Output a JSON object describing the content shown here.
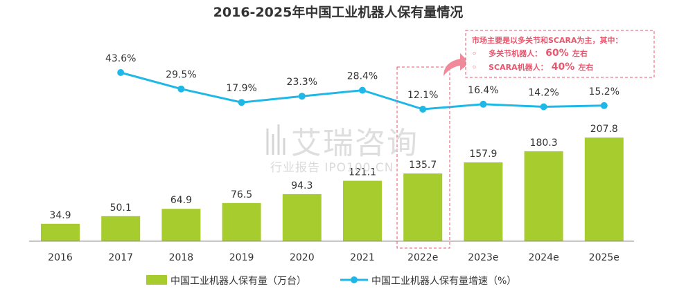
{
  "chart_data": {
    "type": "bar+line",
    "title": "2016-2025年中国工业机器人保有量情况",
    "categories": [
      "2016",
      "2017",
      "2018",
      "2019",
      "2020",
      "2021",
      "2022e",
      "2023e",
      "2024e",
      "2025e"
    ],
    "series": [
      {
        "name": "中国工业机器人保有量（万台）",
        "type": "bar",
        "values": [
          34.9,
          50.1,
          64.9,
          76.5,
          94.3,
          121.1,
          135.7,
          157.9,
          180.3,
          207.8
        ],
        "labels": [
          "34.9",
          "50.1",
          "64.9",
          "76.5",
          "94.3",
          "121.1",
          "135.7",
          "157.9",
          "180.3",
          "207.8"
        ],
        "color": "#a6cc2e"
      },
      {
        "name": "中国工业机器人保有量增速（%）",
        "type": "line",
        "values": [
          null,
          43.6,
          29.5,
          17.9,
          23.3,
          28.4,
          12.1,
          16.4,
          14.2,
          15.2
        ],
        "labels": [
          "",
          "43.6%",
          "29.5%",
          "17.9%",
          "23.3%",
          "28.4%",
          "12.1%",
          "16.4%",
          "14.2%",
          "15.2%"
        ],
        "color": "#1fb8e6"
      }
    ],
    "highlight_category": "2022e",
    "annotation": {
      "line1": "市场主要是以多关节和SCARA为主，其中：",
      "item1_bullet": "◦",
      "item1_prefix": "多关节机器人：",
      "item1_value": "60%",
      "item1_suffix": "左右",
      "item2_bullet": "◦",
      "item2_prefix": "SCARA机器人：",
      "item2_value": "40%",
      "item2_suffix": "左右"
    },
    "legend_position": "bottom",
    "grid": false
  },
  "watermark": {
    "line1": "艾瑞咨询",
    "line2": "行业报告 IPO100.CN"
  },
  "colors": {
    "bar": "#a6cc2e",
    "line": "#1fb8e6",
    "highlight": "#e8566d"
  }
}
